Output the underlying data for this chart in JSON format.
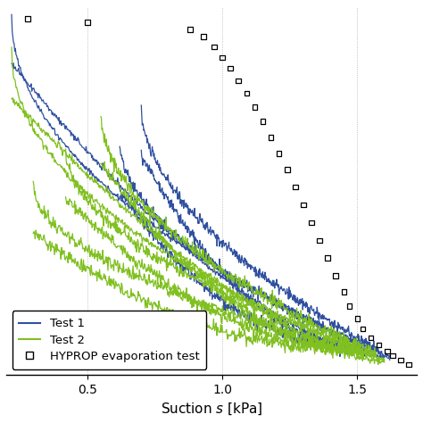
{
  "title": "",
  "xlabel_parts": [
    "Suction ",
    "s",
    " [kPa]"
  ],
  "xlim": [
    0.2,
    1.72
  ],
  "ylim": [
    -0.02,
    1.02
  ],
  "xticks": [
    0.5,
    1.0,
    1.5
  ],
  "blue_color": "#3050a0",
  "green_color": "#80c020",
  "black_color": "#000000",
  "legend_labels": [
    "Test 1",
    "Test 2",
    "HYPROP evaporation test"
  ],
  "grid_color": "#b0b0b0",
  "background_color": "#ffffff",
  "hyprop_s": [
    0.28,
    0.5,
    0.88,
    0.93,
    0.97,
    1.0,
    1.03,
    1.06,
    1.09,
    1.12,
    1.15,
    1.18,
    1.21,
    1.24,
    1.27,
    1.3,
    1.33,
    1.36,
    1.39,
    1.42,
    1.45,
    1.47,
    1.5,
    1.52,
    1.55,
    1.58,
    1.61,
    1.63,
    1.66,
    1.69
  ],
  "hyprop_y": [
    0.985,
    0.975,
    0.955,
    0.935,
    0.905,
    0.875,
    0.845,
    0.81,
    0.775,
    0.735,
    0.695,
    0.65,
    0.605,
    0.56,
    0.51,
    0.46,
    0.41,
    0.36,
    0.31,
    0.26,
    0.215,
    0.175,
    0.14,
    0.11,
    0.085,
    0.065,
    0.048,
    0.035,
    0.022,
    0.01
  ]
}
